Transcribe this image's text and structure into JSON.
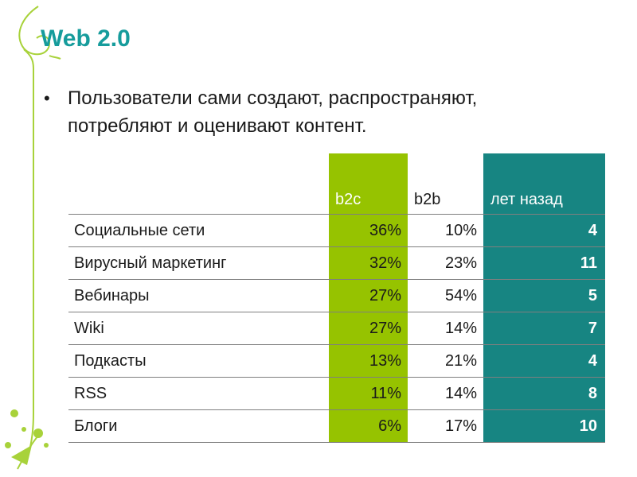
{
  "slide": {
    "title": "Web 2.0",
    "bullet": "Пользователи сами создают, распространяют, потребляют и оценивают контент.",
    "accent_green": "#96c300",
    "accent_teal": "#178582",
    "title_color": "#169c9c"
  },
  "table": {
    "headers": {
      "name": "",
      "b2c": "b2c",
      "b2b": "b2b",
      "years": "лет назад"
    },
    "rows": [
      {
        "name": "Социальные сети",
        "b2c": "36%",
        "b2b": "10%",
        "years": "4"
      },
      {
        "name": "Вирусный маркетинг",
        "b2c": "32%",
        "b2b": "23%",
        "years": "11"
      },
      {
        "name": "Вебинары",
        "b2c": "27%",
        "b2b": "54%",
        "years": "5"
      },
      {
        "name": "Wiki",
        "b2c": "27%",
        "b2b": "14%",
        "years": "7"
      },
      {
        "name": "Подкасты",
        "b2c": "13%",
        "b2b": "21%",
        "years": "4"
      },
      {
        "name": "RSS",
        "b2c": "11%",
        "b2b": "14%",
        "years": "8"
      },
      {
        "name": "Блоги",
        "b2c": "6%",
        "b2b": "17%",
        "years": "10"
      }
    ]
  }
}
